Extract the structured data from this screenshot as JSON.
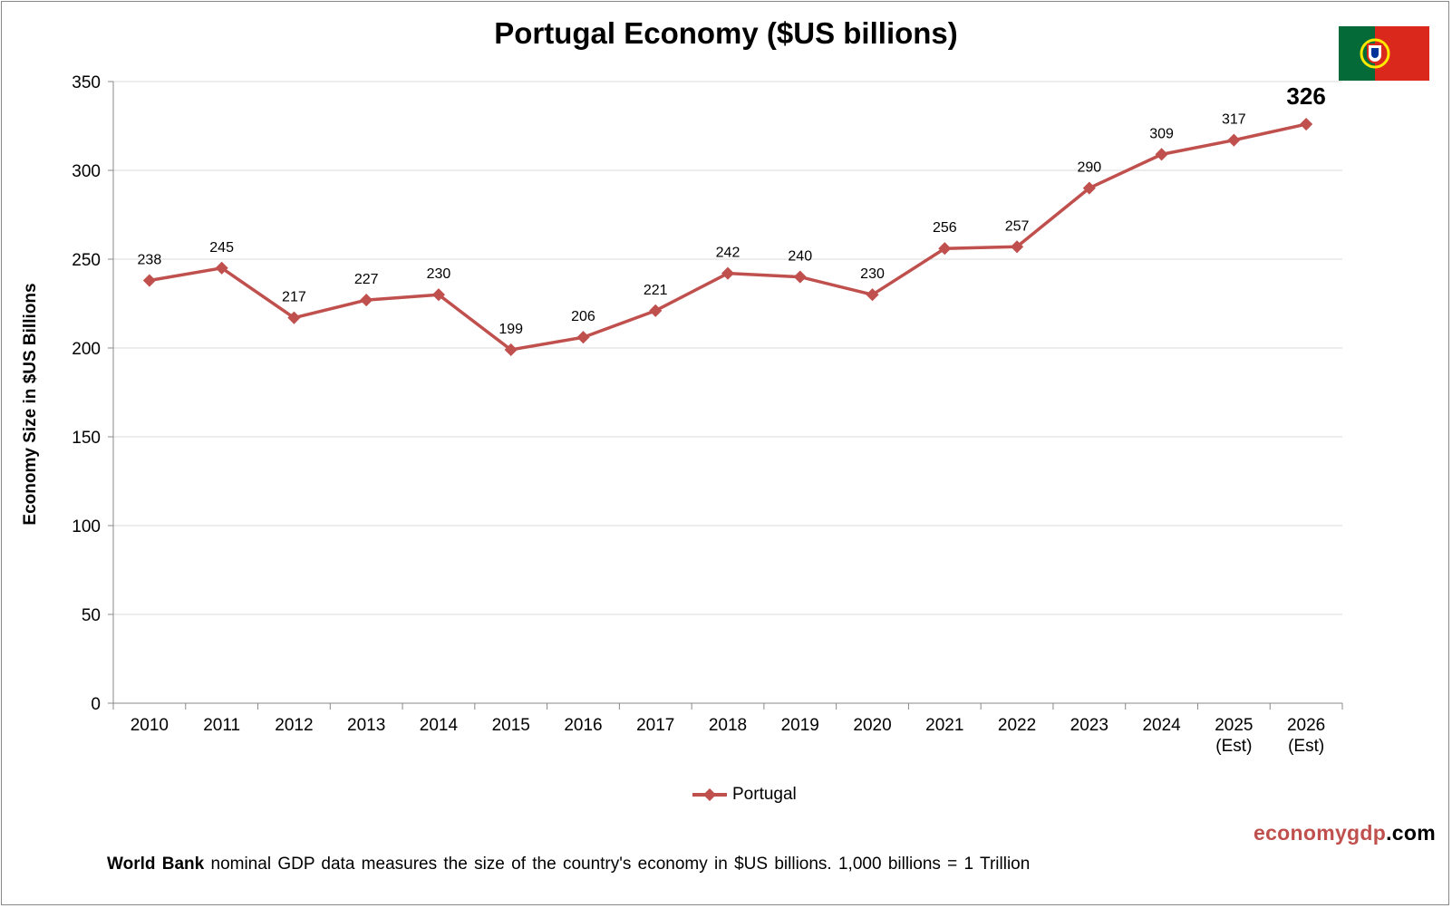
{
  "chart_data": {
    "type": "line",
    "title": "Portugal Economy ($US billions)",
    "ylabel": "Economy Size in $US Billions",
    "xlabel": "",
    "ylim": [
      0,
      350
    ],
    "yticks": [
      0,
      50,
      100,
      150,
      200,
      250,
      300,
      350
    ],
    "grid": true,
    "legend_position": "bottom",
    "categories": [
      "2010",
      "2011",
      "2012",
      "2013",
      "2014",
      "2015",
      "2016",
      "2017",
      "2018",
      "2019",
      "2020",
      "2021",
      "2022",
      "2023",
      "2024",
      "2025\n(Est)",
      "2026\n(Est)"
    ],
    "series": [
      {
        "name": "Portugal",
        "color": "#c0504d",
        "values": [
          238,
          245,
          217,
          227,
          230,
          199,
          206,
          221,
          242,
          240,
          230,
          256,
          257,
          290,
          309,
          317,
          326
        ]
      }
    ]
  },
  "brand": {
    "part1": "economygdp",
    "part2": ".com"
  },
  "footnote": {
    "bold": "World Bank",
    "text": " nominal GDP data  measures the size of the country's economy in $US billions. 1,000 billions = 1 Trillion"
  },
  "colors": {
    "line": "#c0504d",
    "grid": "#d9d9d9",
    "flag_green": "#046a38",
    "flag_red": "#da291c"
  }
}
